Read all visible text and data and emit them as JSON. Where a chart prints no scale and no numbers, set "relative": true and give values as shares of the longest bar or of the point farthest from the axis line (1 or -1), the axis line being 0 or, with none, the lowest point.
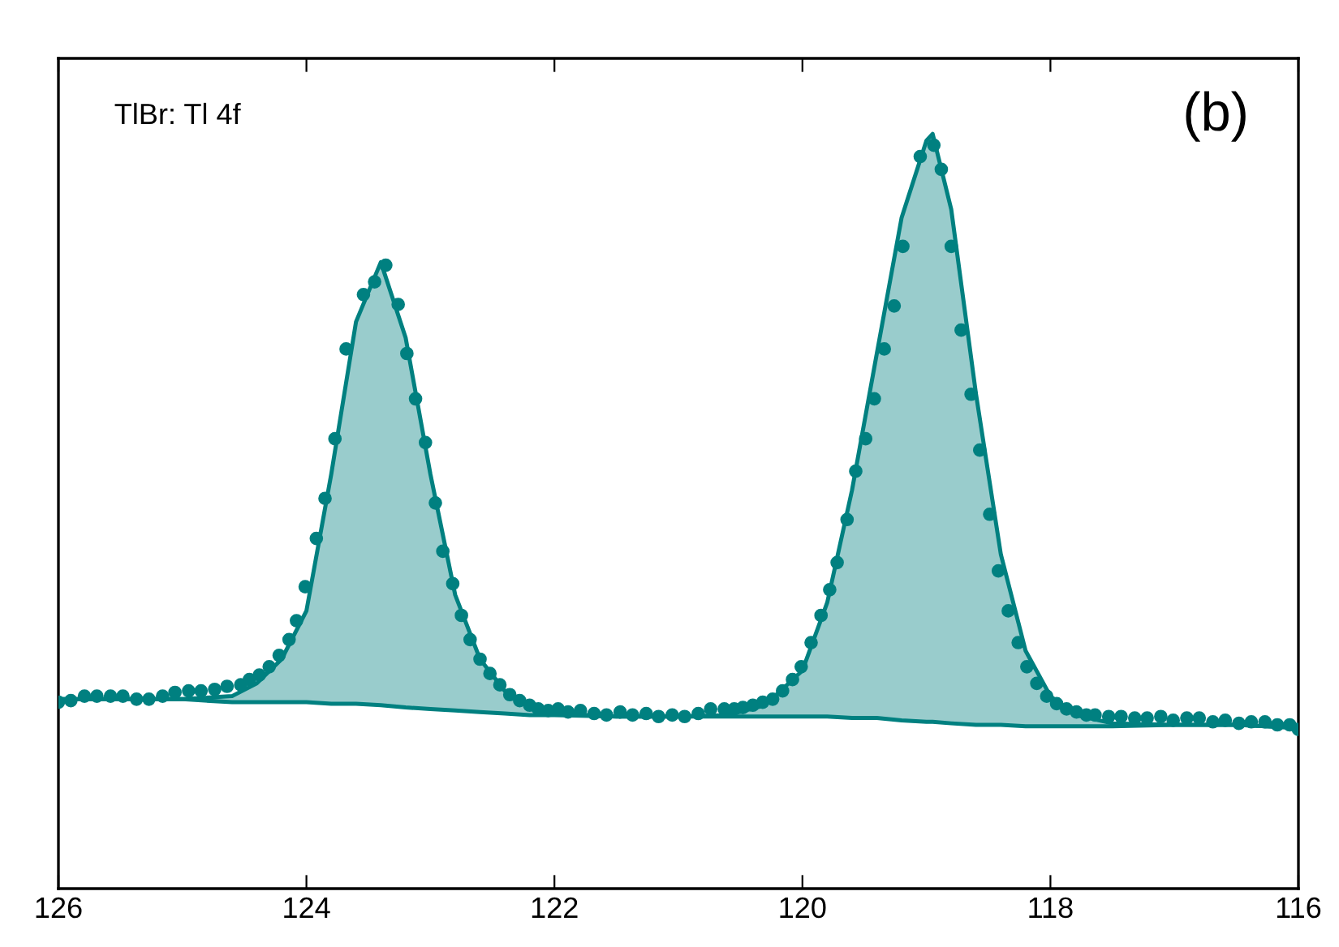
{
  "chart_data": {
    "type": "area",
    "relative": true,
    "xlim": [
      126,
      116
    ],
    "xticks": [
      126,
      124,
      122,
      120,
      118,
      116
    ],
    "tick_labels": "x",
    "grid": false,
    "annotations": [
      "TlBr: Tl 4f",
      "(b)"
    ],
    "series": [
      {
        "type": "scatter",
        "color": "#008080",
        "marker": "circle",
        "x": [
          126.0,
          125.9,
          125.79,
          125.69,
          125.58,
          125.48,
          125.37,
          125.27,
          125.16,
          125.06,
          124.95,
          124.85,
          124.74,
          124.64,
          124.53,
          124.46,
          124.38,
          124.3,
          124.22,
          124.14,
          124.08,
          124.01,
          123.92,
          123.85,
          123.77,
          123.68,
          123.54,
          123.45,
          123.36,
          123.26,
          123.19,
          123.12,
          123.04,
          122.96,
          122.9,
          122.82,
          122.75,
          122.68,
          122.6,
          122.52,
          122.44,
          122.36,
          122.28,
          122.2,
          122.13,
          122.05,
          121.97,
          121.89,
          121.79,
          121.68,
          121.58,
          121.47,
          121.37,
          121.26,
          121.16,
          121.05,
          120.95,
          120.84,
          120.74,
          120.63,
          120.55,
          120.48,
          120.4,
          120.32,
          120.24,
          120.16,
          120.08,
          120.01,
          119.93,
          119.85,
          119.78,
          119.72,
          119.64,
          119.57,
          119.49,
          119.42,
          119.34,
          119.26,
          119.19,
          119.05,
          118.94,
          118.88,
          118.8,
          118.72,
          118.64,
          118.57,
          118.49,
          118.42,
          118.34,
          118.26,
          118.19,
          118.11,
          118.03,
          117.95,
          117.87,
          117.79,
          117.71,
          117.64,
          117.53,
          117.43,
          117.32,
          117.22,
          117.11,
          117.01,
          116.9,
          116.8,
          116.69,
          116.59,
          116.48,
          116.38,
          116.27,
          116.17,
          116.07,
          116.0
        ],
        "values": [
          0.247,
          0.249,
          0.255,
          0.255,
          0.255,
          0.255,
          0.251,
          0.251,
          0.255,
          0.26,
          0.262,
          0.262,
          0.264,
          0.268,
          0.27,
          0.277,
          0.283,
          0.294,
          0.309,
          0.33,
          0.355,
          0.4,
          0.464,
          0.517,
          0.596,
          0.715,
          0.787,
          0.804,
          0.826,
          0.774,
          0.709,
          0.649,
          0.591,
          0.511,
          0.447,
          0.404,
          0.362,
          0.33,
          0.304,
          0.285,
          0.27,
          0.257,
          0.249,
          0.243,
          0.238,
          0.236,
          0.238,
          0.234,
          0.236,
          0.232,
          0.23,
          0.234,
          0.23,
          0.232,
          0.228,
          0.23,
          0.228,
          0.232,
          0.238,
          0.238,
          0.238,
          0.24,
          0.243,
          0.247,
          0.251,
          0.262,
          0.277,
          0.294,
          0.326,
          0.362,
          0.396,
          0.432,
          0.489,
          0.553,
          0.596,
          0.649,
          0.715,
          0.772,
          0.851,
          0.97,
          0.985,
          0.953,
          0.851,
          0.74,
          0.655,
          0.581,
          0.496,
          0.421,
          0.368,
          0.326,
          0.294,
          0.272,
          0.255,
          0.245,
          0.238,
          0.234,
          0.23,
          0.23,
          0.228,
          0.228,
          0.226,
          0.226,
          0.228,
          0.223,
          0.226,
          0.226,
          0.221,
          0.223,
          0.219,
          0.221,
          0.221,
          0.217,
          0.217,
          0.211
        ]
      },
      {
        "type": "line",
        "color": "#008080",
        "line_style": "solid",
        "x": [
          126.0,
          125.0,
          124.6,
          124.4,
          124.2,
          124.0,
          123.8,
          123.6,
          123.4,
          123.2,
          123.0,
          122.8,
          122.6,
          122.4,
          122.2,
          122.0,
          121.5,
          121.0,
          120.6,
          120.3,
          120.0,
          119.8,
          119.6,
          119.4,
          119.2,
          119.0,
          118.95,
          118.8,
          118.6,
          118.4,
          118.2,
          118.0,
          117.8,
          117.5,
          117.0,
          116.5,
          116.0
        ],
        "values": [
          0.251,
          0.251,
          0.247,
          0.247,
          0.247,
          0.247,
          0.245,
          0.245,
          0.243,
          0.24,
          0.238,
          0.236,
          0.234,
          0.232,
          0.23,
          0.23,
          0.228,
          0.228,
          0.228,
          0.228,
          0.228,
          0.228,
          0.226,
          0.226,
          0.223,
          0.221,
          0.221,
          0.219,
          0.217,
          0.217,
          0.215,
          0.215,
          0.215,
          0.215,
          0.217,
          0.217,
          0.213
        ]
      },
      {
        "color": "#008080",
        "line_style": "solid",
        "x": [
          126.0,
          125.0,
          124.6,
          124.4,
          124.2,
          124.0,
          123.8,
          123.6,
          123.4,
          123.2,
          123.0,
          122.8,
          122.6,
          122.4,
          122.2,
          122.0,
          121.5,
          121.0,
          120.6,
          120.3,
          120.0,
          119.8,
          119.6,
          119.4,
          119.2,
          119.0,
          118.95,
          118.8,
          118.6,
          118.4,
          118.2,
          118.0,
          117.8,
          117.5,
          117.0,
          116.5,
          116.0
        ],
        "values": [
          0.251,
          0.251,
          0.255,
          0.272,
          0.304,
          0.368,
          0.549,
          0.751,
          0.83,
          0.73,
          0.549,
          0.389,
          0.304,
          0.262,
          0.243,
          0.232,
          0.228,
          0.228,
          0.23,
          0.243,
          0.289,
          0.379,
          0.528,
          0.709,
          0.889,
          0.991,
          1.0,
          0.9,
          0.655,
          0.443,
          0.315,
          0.255,
          0.23,
          0.219,
          0.217,
          0.217,
          0.213
        ]
      }
    ]
  }
}
